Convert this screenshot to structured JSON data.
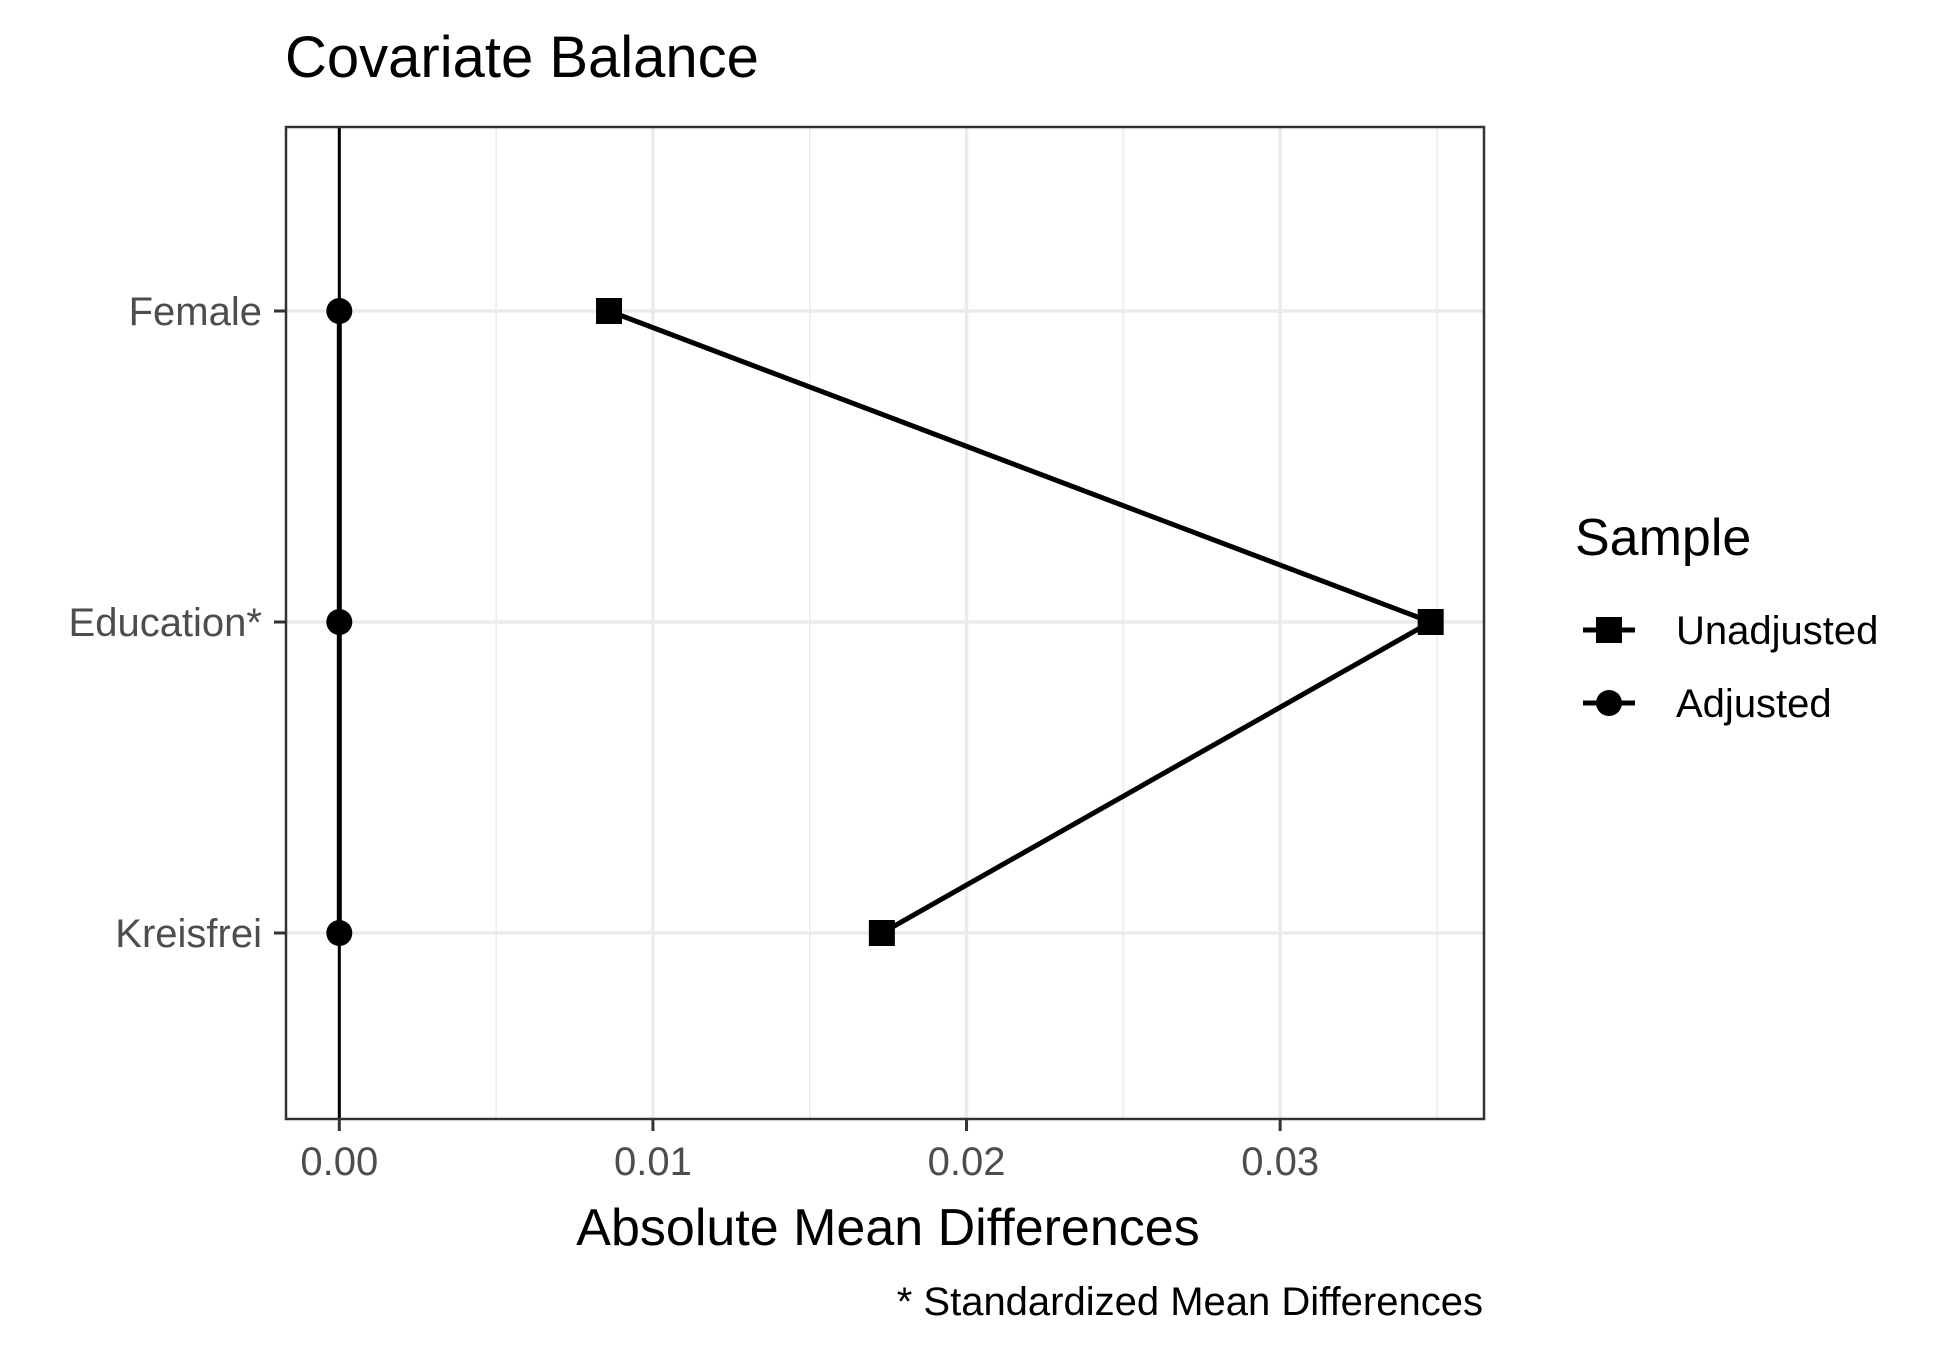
{
  "chart_data": {
    "type": "scatter",
    "title": "Covariate Balance",
    "xlabel": "Absolute Mean Differences",
    "ylabel": "",
    "caption": "* Standardized Mean Differences",
    "xlim": [
      -0.0017,
      0.0365
    ],
    "x_ticks": [
      0.0,
      0.01,
      0.02,
      0.03
    ],
    "x_tick_labels": [
      "0.00",
      "0.01",
      "0.02",
      "0.03"
    ],
    "categories": [
      "Female",
      "Education*",
      "Kreisfrei"
    ],
    "series": [
      {
        "name": "Unadjusted",
        "marker": "square",
        "values": [
          0.0086,
          0.0348,
          0.0173
        ]
      },
      {
        "name": "Adjusted",
        "marker": "circle",
        "values": [
          0.0,
          0.0,
          0.0
        ]
      }
    ],
    "reference_line_x": 0,
    "grid": true,
    "legend": {
      "title": "Sample",
      "position": "right"
    },
    "colors": {
      "points": "#000000",
      "grid": "#ebebeb",
      "panel_border": "#333333",
      "tick_text": "#4d4d4d"
    }
  }
}
